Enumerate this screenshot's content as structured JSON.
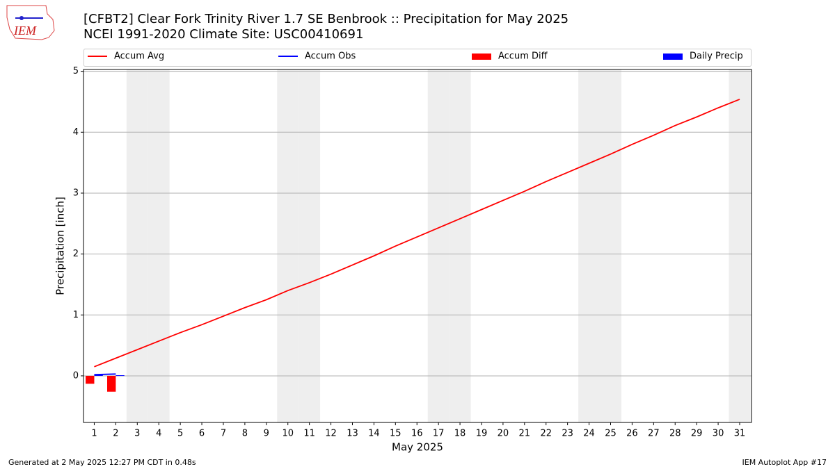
{
  "chart_data": {
    "type": "line",
    "title": "[CFBT2] Clear Fork Trinity River 1.7 SE Benbrook :: Precipitation for May 2025",
    "subtitle": "NCEI 1991-2020 Climate Site: USC00410691",
    "logo_text": "IEM",
    "x_label": "May 2025",
    "y_label": "Precipitation [inch]",
    "footer_left": "Generated at 2 May 2025 12:27 PM CDT in 0.48s",
    "footer_right": "IEM Autoplot App #17",
    "x": [
      1,
      2,
      3,
      4,
      5,
      6,
      7,
      8,
      9,
      10,
      11,
      12,
      13,
      14,
      15,
      16,
      17,
      18,
      19,
      20,
      21,
      22,
      23,
      24,
      25,
      26,
      27,
      28,
      29,
      30,
      31
    ],
    "series": [
      {
        "name": "Accum Avg",
        "color": "#ff0000",
        "style": "line",
        "values": [
          0.15,
          0.29,
          0.43,
          0.57,
          0.71,
          0.84,
          0.98,
          1.12,
          1.25,
          1.4,
          1.53,
          1.67,
          1.82,
          1.97,
          2.13,
          2.28,
          2.43,
          2.58,
          2.73,
          2.88,
          3.03,
          3.19,
          3.34,
          3.49,
          3.64,
          3.8,
          3.95,
          4.11,
          4.25,
          4.4,
          4.54
        ]
      },
      {
        "name": "Accum Obs",
        "color": "#0000ff",
        "style": "line",
        "values": [
          0.02,
          0.03,
          null,
          null,
          null,
          null,
          null,
          null,
          null,
          null,
          null,
          null,
          null,
          null,
          null,
          null,
          null,
          null,
          null,
          null,
          null,
          null,
          null,
          null,
          null,
          null,
          null,
          null,
          null,
          null,
          null
        ]
      },
      {
        "name": "Accum Diff",
        "color": "#ff0000",
        "style": "bar",
        "values": [
          -0.13,
          -0.26,
          null,
          null,
          null,
          null,
          null,
          null,
          null,
          null,
          null,
          null,
          null,
          null,
          null,
          null,
          null,
          null,
          null,
          null,
          null,
          null,
          null,
          null,
          null,
          null,
          null,
          null,
          null,
          null,
          null
        ]
      },
      {
        "name": "Daily Precip",
        "color": "#0000ff",
        "style": "bar",
        "values": [
          0.02,
          0.01,
          null,
          null,
          null,
          null,
          null,
          null,
          null,
          null,
          null,
          null,
          null,
          null,
          null,
          null,
          null,
          null,
          null,
          null,
          null,
          null,
          null,
          null,
          null,
          null,
          null,
          null,
          null,
          null,
          null
        ]
      }
    ],
    "shaded_days": [
      3,
      4,
      10,
      11,
      17,
      18,
      24,
      25,
      31
    ],
    "shade_color": "#eeeeee",
    "xlim": [
      0.5,
      31.55
    ],
    "xticks": [
      1,
      2,
      3,
      4,
      5,
      6,
      7,
      8,
      9,
      10,
      11,
      12,
      13,
      14,
      15,
      16,
      17,
      18,
      19,
      20,
      21,
      22,
      23,
      24,
      25,
      26,
      27,
      28,
      29,
      30,
      31
    ],
    "ylim": [
      -0.765,
      5.03
    ],
    "yticks": [
      0,
      1,
      2,
      3,
      4,
      5
    ],
    "grid": true,
    "legend": "top"
  }
}
